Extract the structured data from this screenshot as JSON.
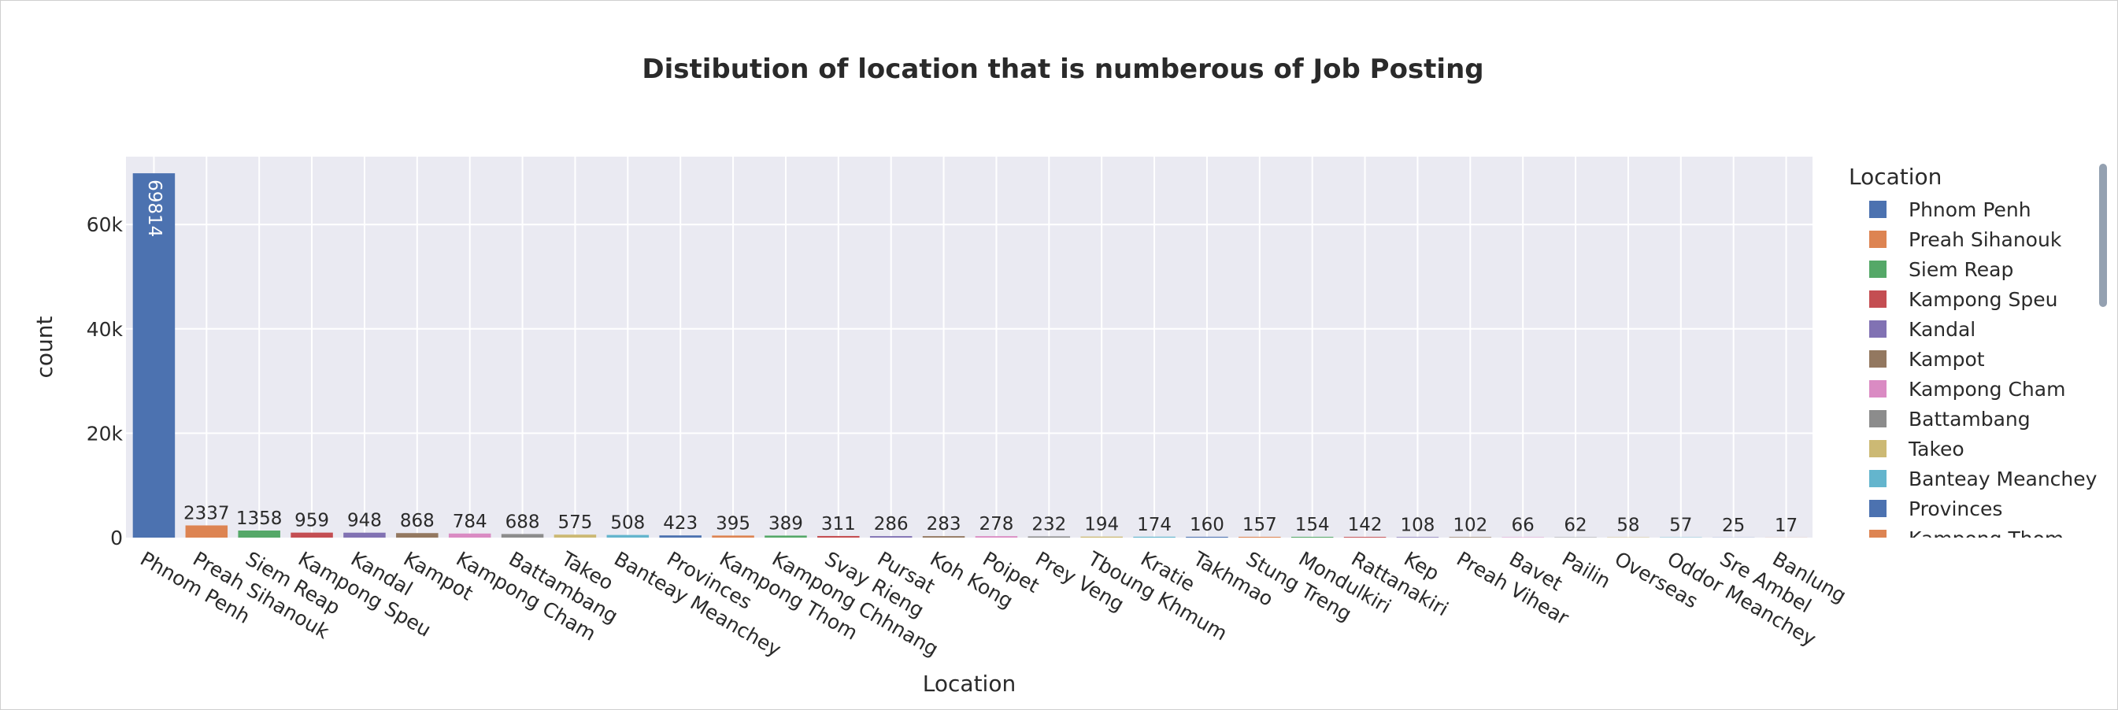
{
  "chart_data": {
    "type": "bar",
    "title": "Distibution of location that is numberous of Job Posting",
    "xlabel": "Location",
    "ylabel": "count",
    "ylim": [
      0,
      73000
    ],
    "yticks": [
      0,
      20000,
      40000,
      60000
    ],
    "ytick_labels": [
      "0",
      "20k",
      "40k",
      "60k"
    ],
    "grid": true,
    "legend_title": "Location",
    "legend_position": "right",
    "categories": [
      "Phnom Penh",
      "Preah Sihanouk",
      "Siem Reap",
      "Kampong Speu",
      "Kandal",
      "Kampot",
      "Kampong Cham",
      "Battambang",
      "Takeo",
      "Banteay Meanchey",
      "Provinces",
      "Kampong Thom",
      "Kampong Chhnang",
      "Svay Rieng",
      "Pursat",
      "Koh Kong",
      "Poipet",
      "Prey Veng",
      "Tboung Khmum",
      "Kratie",
      "Takhmao",
      "Stung Treng",
      "Mondulkiri",
      "Rattanakiri",
      "Kep",
      "Preah Vihear",
      "Bavet",
      "Pailin",
      "Overseas",
      "Oddor Meanchey",
      "Sre Ambel",
      "Banlung"
    ],
    "values": [
      69814,
      2337,
      1358,
      959,
      948,
      868,
      784,
      688,
      575,
      508,
      423,
      395,
      389,
      311,
      286,
      283,
      278,
      232,
      194,
      174,
      160,
      157,
      154,
      142,
      108,
      102,
      66,
      62,
      58,
      57,
      25,
      17
    ],
    "data_labels": [
      "69814",
      "2337",
      "1358",
      "959",
      "948",
      "868",
      "784",
      "688",
      "575",
      "508",
      "423",
      "395",
      "389",
      "311",
      "286",
      "283",
      "278",
      "232",
      "194",
      "174",
      "160",
      "157",
      "154",
      "142",
      "108",
      "102",
      "66",
      "62",
      "58",
      "57",
      "25",
      "17"
    ],
    "colors": [
      "#4c72b0",
      "#dd8452",
      "#55a868",
      "#c44e52",
      "#8172b3",
      "#937860",
      "#da8bc3",
      "#8c8c8c",
      "#ccb974",
      "#64b5cd"
    ],
    "legend_entries": [
      "Phnom Penh",
      "Preah Sihanouk",
      "Siem Reap",
      "Kampong Speu",
      "Kandal",
      "Kampot",
      "Kampong Cham",
      "Battambang",
      "Takeo",
      "Banteay Meanchey",
      "Provinces",
      "Kampong Thom"
    ]
  }
}
